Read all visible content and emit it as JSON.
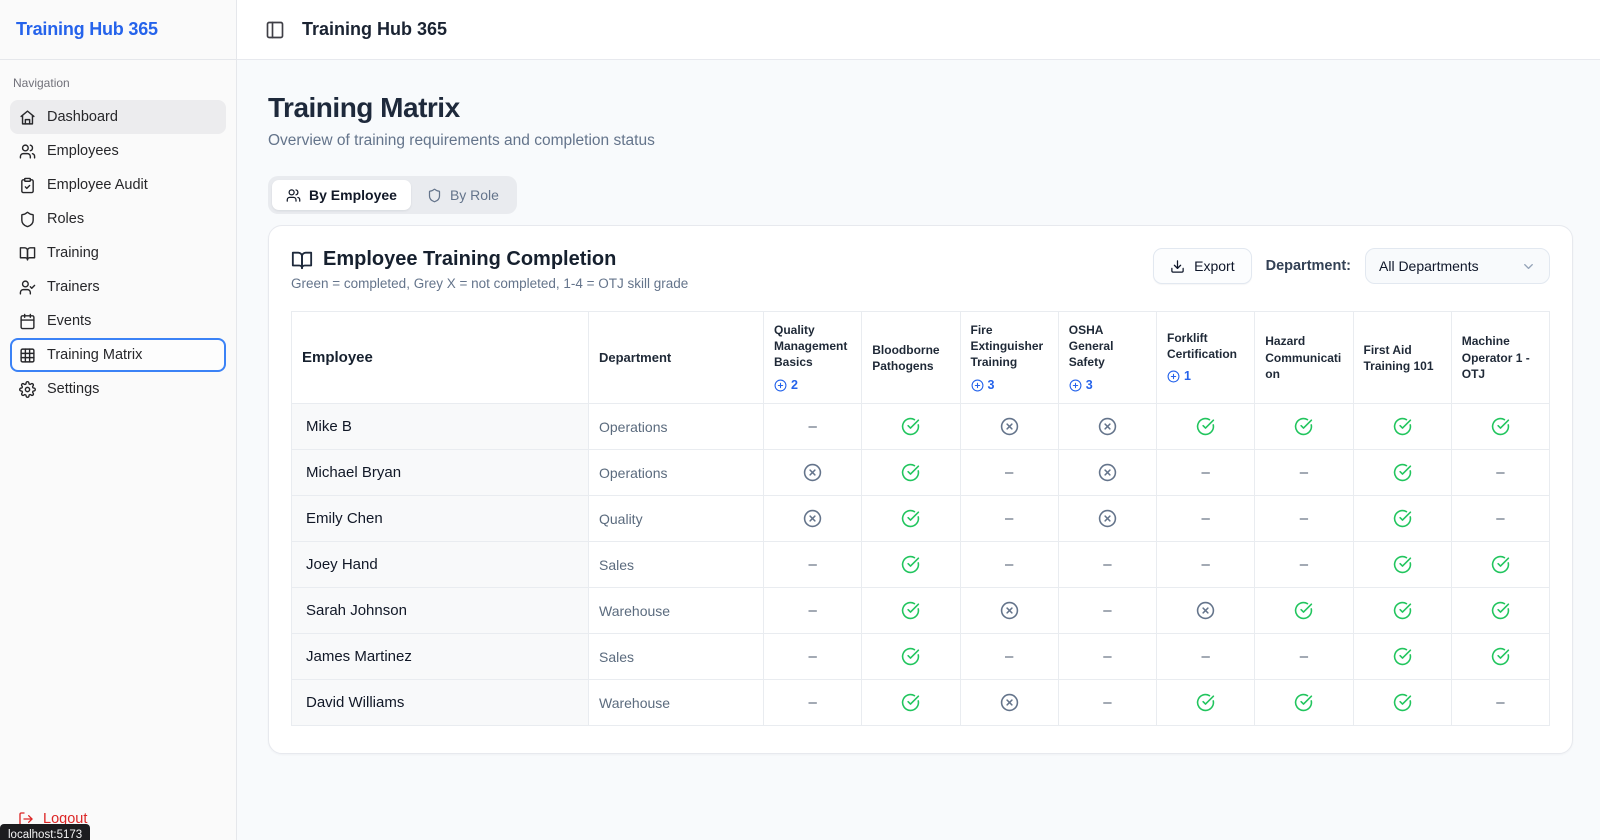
{
  "colors": {
    "brand_blue": "#2563eb",
    "focus_ring": "#3b82f6",
    "check_green": "#22c55e",
    "x_grey": "#64748b",
    "logout_red": "#dc2626"
  },
  "sidebar": {
    "brand": "Training Hub 365",
    "section_label": "Navigation",
    "items": [
      {
        "label": "Dashboard",
        "icon": "home-icon",
        "state": "highlighted"
      },
      {
        "label": "Employees",
        "icon": "users-icon",
        "state": "normal"
      },
      {
        "label": "Employee Audit",
        "icon": "clipboard-check-icon",
        "state": "normal"
      },
      {
        "label": "Roles",
        "icon": "shield-icon",
        "state": "normal"
      },
      {
        "label": "Training",
        "icon": "book-open-icon",
        "state": "normal"
      },
      {
        "label": "Trainers",
        "icon": "user-check-icon",
        "state": "normal"
      },
      {
        "label": "Events",
        "icon": "calendar-icon",
        "state": "normal"
      },
      {
        "label": "Training Matrix",
        "icon": "grid-icon",
        "state": "current"
      },
      {
        "label": "Settings",
        "icon": "gear-icon",
        "state": "normal"
      }
    ],
    "logout_label": "Logout",
    "url_tooltip": "localhost:5173"
  },
  "header": {
    "title": "Training Hub 365"
  },
  "page": {
    "title": "Training Matrix",
    "subtitle": "Overview of training requirements and completion status",
    "tabs": [
      {
        "label": "By Employee",
        "icon": "users-icon",
        "active": true
      },
      {
        "label": "By Role",
        "icon": "shield-icon",
        "active": false
      }
    ]
  },
  "card": {
    "title": "Employee Training Completion",
    "subtitle": "Green = completed, Grey X = not completed, 1-4 = OTJ skill grade",
    "export_label": "Export",
    "department_label": "Department:",
    "department_value": "All Departments"
  },
  "table": {
    "row_header": "Employee",
    "department_header": "Department",
    "training_columns": [
      {
        "label": "Quality Management Basics",
        "badge": "2"
      },
      {
        "label": "Bloodborne Pathogens",
        "badge": null
      },
      {
        "label": "Fire Extinguisher Training",
        "badge": "3"
      },
      {
        "label": "OSHA General Safety",
        "badge": "3"
      },
      {
        "label": "Forklift Certification",
        "badge": "1"
      },
      {
        "label": "Hazard Communication",
        "badge": null
      },
      {
        "label": "First Aid Training 101",
        "badge": null
      },
      {
        "label": "Machine Operator 1 - OTJ",
        "badge": null
      }
    ],
    "rows": [
      {
        "employee": "Mike B",
        "department": "Operations",
        "cells": [
          "dash",
          "check",
          "x",
          "x",
          "check",
          "check",
          "check",
          "check"
        ]
      },
      {
        "employee": "Michael Bryan",
        "department": "Operations",
        "cells": [
          "x",
          "check",
          "dash",
          "x",
          "dash",
          "dash",
          "check",
          "dash"
        ]
      },
      {
        "employee": "Emily Chen",
        "department": "Quality",
        "cells": [
          "x",
          "check",
          "dash",
          "x",
          "dash",
          "dash",
          "check",
          "dash"
        ]
      },
      {
        "employee": "Joey Hand",
        "department": "Sales",
        "cells": [
          "dash",
          "check",
          "dash",
          "dash",
          "dash",
          "dash",
          "check",
          "check"
        ]
      },
      {
        "employee": "Sarah Johnson",
        "department": "Warehouse",
        "cells": [
          "dash",
          "check",
          "x",
          "dash",
          "x",
          "check",
          "check",
          "check"
        ]
      },
      {
        "employee": "James Martinez",
        "department": "Sales",
        "cells": [
          "dash",
          "check",
          "dash",
          "dash",
          "dash",
          "dash",
          "check",
          "check"
        ]
      },
      {
        "employee": "David Williams",
        "department": "Warehouse",
        "cells": [
          "dash",
          "check",
          "x",
          "dash",
          "check",
          "check",
          "check",
          "dash"
        ]
      }
    ],
    "status_glyphs": {
      "dash": "–",
      "check": "circle-check-icon",
      "x": "circle-x-icon"
    }
  }
}
